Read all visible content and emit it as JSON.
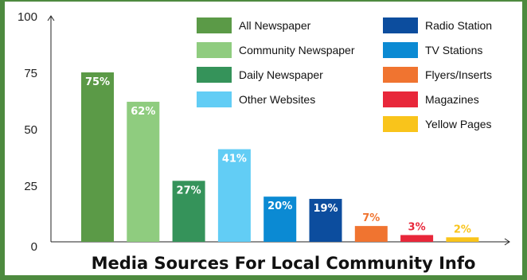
{
  "chart_data": {
    "type": "bar",
    "title": "Media Sources For Local Community Info",
    "ylim": [
      0,
      100
    ],
    "yticks": [
      "0",
      "25",
      "50",
      "75",
      "100"
    ],
    "series": [
      {
        "name": "All Newspaper",
        "value": 75,
        "label": "75%",
        "color": "#5b9a47",
        "label_inside": true
      },
      {
        "name": "Community Newspaper",
        "value": 62,
        "label": "62%",
        "color": "#8fcc7f",
        "label_inside": true
      },
      {
        "name": "Daily Newspaper",
        "value": 27,
        "label": "27%",
        "color": "#35935a",
        "label_inside": true
      },
      {
        "name": "Other Websites",
        "value": 41,
        "label": "41%",
        "color": "#62cdf5",
        "label_inside": true
      },
      {
        "name": "TV Stations",
        "value": 20,
        "label": "20%",
        "color": "#0b8ad3",
        "label_inside": true
      },
      {
        "name": "Radio Station",
        "value": 19,
        "label": "19%",
        "color": "#0c4d9e",
        "label_inside": true
      },
      {
        "name": "Flyers/Inserts",
        "value": 7,
        "label": "7%",
        "color": "#f07430",
        "label_inside": false
      },
      {
        "name": "Magazines",
        "value": 3,
        "label": "3%",
        "color": "#e8273a",
        "label_inside": false
      },
      {
        "name": "Yellow Pages",
        "value": 2,
        "label": "2%",
        "color": "#f9c41b",
        "label_inside": false
      }
    ],
    "legend": [
      {
        "label": "All Newspaper",
        "color": "#5b9a47"
      },
      {
        "label": "Community Newspaper",
        "color": "#8fcc7f"
      },
      {
        "label": "Daily Newspaper",
        "color": "#35935a"
      },
      {
        "label": "Other Websites",
        "color": "#62cdf5"
      },
      {
        "label": "Radio Station",
        "color": "#0c4d9e"
      },
      {
        "label": "TV Stations",
        "color": "#0b8ad3"
      },
      {
        "label": "Flyers/Inserts",
        "color": "#f07430"
      },
      {
        "label": "Magazines",
        "color": "#e8273a"
      },
      {
        "label": "Yellow Pages",
        "color": "#f9c41b"
      }
    ],
    "legend_placement": "top-right",
    "grid": false
  }
}
